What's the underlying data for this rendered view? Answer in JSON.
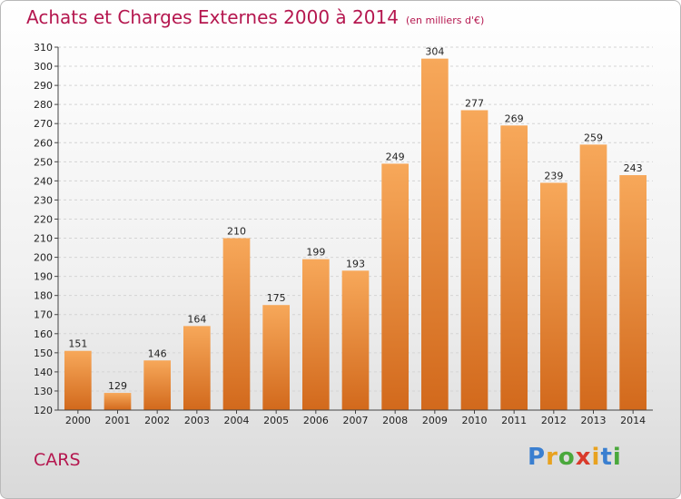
{
  "title": {
    "main": "Achats et Charges Externes 2000 à 2014",
    "sub": "(en milliers d'€)"
  },
  "footer": {
    "name": "CARS"
  },
  "logo": {
    "letters": [
      {
        "ch": "P",
        "color": "#3a7fd0"
      },
      {
        "ch": "r",
        "color": "#e8a21f"
      },
      {
        "ch": "o",
        "color": "#4aa83c"
      },
      {
        "ch": "x",
        "color": "#d93a2b"
      },
      {
        "ch": "i",
        "color": "#e8a21f"
      },
      {
        "ch": "t",
        "color": "#3a7fd0"
      },
      {
        "ch": "i",
        "color": "#4aa83c"
      }
    ]
  },
  "chart_data": {
    "type": "bar",
    "categories": [
      "2000",
      "2001",
      "2002",
      "2003",
      "2004",
      "2005",
      "2006",
      "2007",
      "2008",
      "2009",
      "2010",
      "2011",
      "2012",
      "2013",
      "2014"
    ],
    "values": [
      151,
      129,
      146,
      164,
      210,
      175,
      199,
      193,
      249,
      304,
      277,
      269,
      239,
      259,
      243
    ],
    "ylim": [
      120,
      310
    ],
    "yticks": [
      120,
      130,
      140,
      150,
      160,
      170,
      180,
      190,
      200,
      210,
      220,
      230,
      240,
      250,
      260,
      270,
      280,
      290,
      300,
      310
    ],
    "grid": true,
    "bar_color_top": "#f7a85a",
    "bar_color_bottom": "#d2691c"
  }
}
